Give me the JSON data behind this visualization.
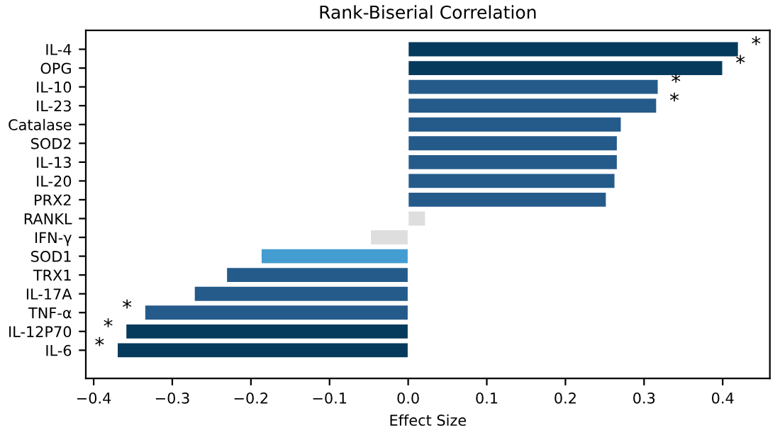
{
  "chart_data": {
    "type": "bar",
    "orientation": "horizontal",
    "title": "Rank-Biserial Correlation",
    "xlabel": "Effect Size",
    "categories": [
      "IL-4",
      "OPG",
      "IL-10",
      "IL-23",
      "Catalase",
      "SOD2",
      "IL-13",
      "IL-20",
      "PRX2",
      "RANKL",
      "IFN-γ",
      "SOD1",
      "TRX1",
      "IL-17A",
      "TNF-α",
      "IL-12P70",
      "IL-6"
    ],
    "values": [
      0.42,
      0.4,
      0.318,
      0.316,
      0.271,
      0.266,
      0.266,
      0.263,
      0.252,
      0.022,
      -0.048,
      -0.187,
      -0.231,
      -0.272,
      -0.335,
      -0.359,
      -0.37
    ],
    "colors": [
      "#053a5c",
      "#053a5c",
      "#255b8a",
      "#255b8a",
      "#255b8a",
      "#255b8a",
      "#255b8a",
      "#255b8a",
      "#255b8a",
      "#dedede",
      "#dedede",
      "#449dd1",
      "#255b8a",
      "#255b8a",
      "#255b8a",
      "#053a5c",
      "#053a5c"
    ],
    "annotations": [
      {
        "text": "*",
        "x": 0.42,
        "y": "IL-4"
      },
      {
        "text": "*",
        "x": 0.4,
        "y": "OPG"
      },
      {
        "text": "*",
        "x": 0.318,
        "y": "IL-10"
      },
      {
        "text": "*",
        "x": 0.316,
        "y": "IL-23"
      },
      {
        "text": "*",
        "x": -0.335,
        "y": "TNF-α"
      },
      {
        "text": "*",
        "x": -0.359,
        "y": "IL-12P70"
      },
      {
        "text": "*",
        "x": -0.37,
        "y": "IL-6"
      }
    ],
    "xlim": [
      -0.41,
      0.46
    ],
    "xticks": [
      {
        "value": -0.4,
        "label": "−0.4"
      },
      {
        "value": -0.3,
        "label": "−0.3"
      },
      {
        "value": -0.2,
        "label": "−0.2"
      },
      {
        "value": -0.1,
        "label": "−0.1"
      },
      {
        "value": 0.0,
        "label": "0.0"
      },
      {
        "value": 0.1,
        "label": "0.1"
      },
      {
        "value": 0.2,
        "label": "0.2"
      },
      {
        "value": 0.3,
        "label": "0.3"
      },
      {
        "value": 0.4,
        "label": "0.4"
      }
    ],
    "grid": false,
    "legend": false
  }
}
